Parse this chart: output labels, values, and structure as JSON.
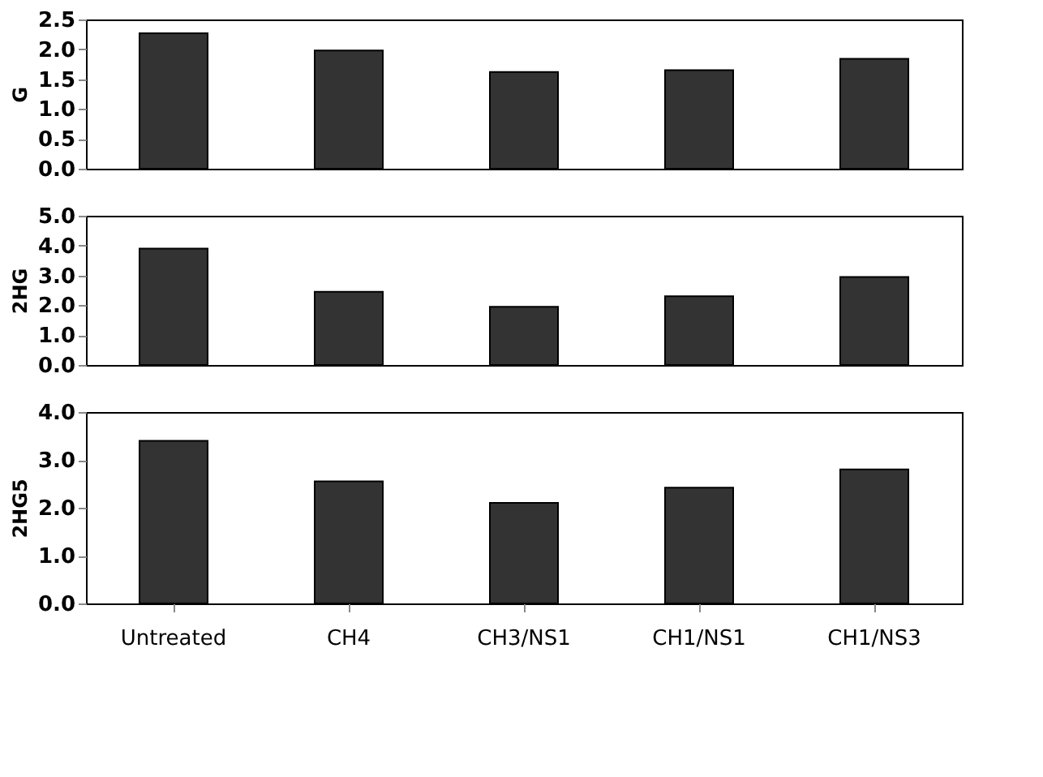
{
  "chart_data": [
    {
      "type": "bar",
      "ylabel": "G",
      "categories": [
        null,
        null,
        null,
        null,
        null
      ],
      "values": [
        2.27,
        1.98,
        1.62,
        1.65,
        1.84
      ],
      "color": "#333333",
      "ylim": [
        0,
        2.5
      ],
      "yticks": [
        {
          "value": 0,
          "label": "0.0"
        },
        0.5,
        {
          "value": 1,
          "label": "1.0"
        },
        1.5,
        {
          "value": 2,
          "label": "2.0"
        },
        2.5
      ],
      "grid": false,
      "tick_labels": "y"
    },
    {
      "type": "bar",
      "ylabel": "2HG",
      "categories": [
        null,
        null,
        null,
        null,
        null
      ],
      "values": [
        3.9,
        2.45,
        1.95,
        2.3,
        2.95
      ],
      "color": "#333333",
      "ylim": [
        0,
        5
      ],
      "yticks": [
        {
          "value": 0,
          "label": "0.0"
        },
        {
          "value": 1,
          "label": "1.0"
        },
        {
          "value": 2,
          "label": "2.0"
        },
        {
          "value": 3,
          "label": "3.0"
        },
        {
          "value": 4,
          "label": "4.0"
        },
        {
          "value": 5,
          "label": "5.0"
        }
      ],
      "grid": false,
      "tick_labels": "y"
    },
    {
      "type": "bar",
      "ylabel": "2HG5",
      "categories": [
        "Untreated",
        "CH4",
        "CH3/NS1",
        "CH1/NS1",
        "CH1/NS3"
      ],
      "values": [
        3.4,
        2.55,
        2.1,
        2.42,
        2.8
      ],
      "color": "#333333",
      "ylim": [
        0,
        4
      ],
      "yticks": [
        {
          "value": 0,
          "label": "0.0"
        },
        {
          "value": 1,
          "label": "1.0"
        },
        {
          "value": 2,
          "label": "2.0"
        },
        {
          "value": 3,
          "label": "3.0"
        },
        {
          "value": 4,
          "label": "4.0"
        }
      ],
      "grid": false
    }
  ]
}
